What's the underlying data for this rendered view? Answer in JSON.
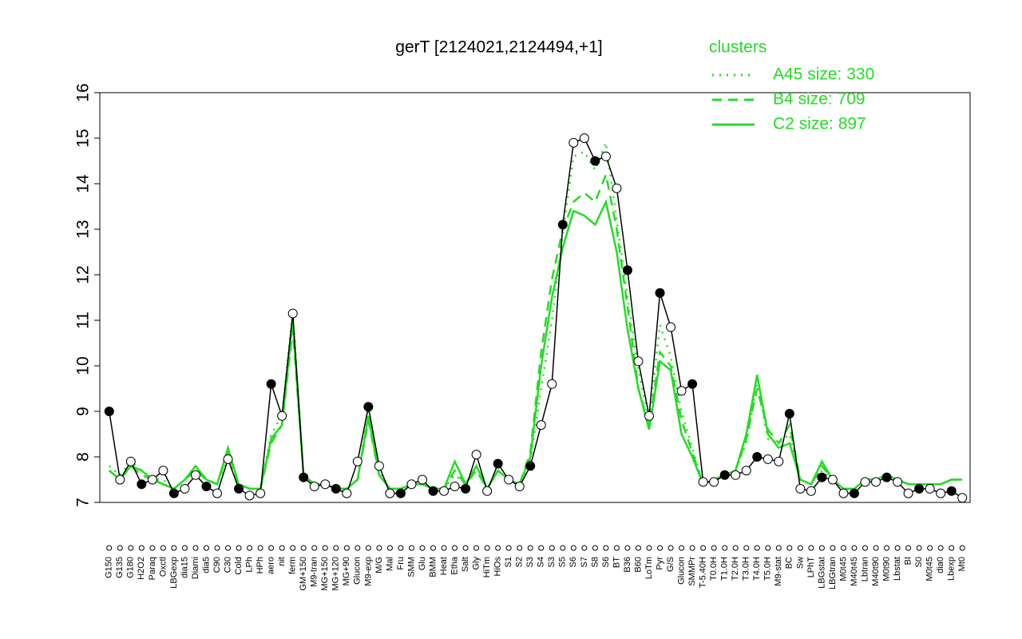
{
  "chart_data": {
    "type": "line",
    "title": "gerT [2124021,2124494,+1]",
    "legend_title": "clusters",
    "legend_position": "top-right",
    "categories": [
      "G150",
      "G135",
      "G180",
      "H2O2",
      "Paraq",
      "Oxctl",
      "LBGexp",
      "dia15",
      "Diami",
      "dia5",
      "C90",
      "C30",
      "Cold",
      "LPh",
      "HPh",
      "aero",
      "nit",
      "ferm",
      "GM+150",
      "M9-tran",
      "MG+150",
      "MG+120",
      "MG+90",
      "Glucon",
      "M9-exp",
      "M/G",
      "Mal",
      "Fru",
      "SMM",
      "Glu",
      "BMM",
      "Heat",
      "Etha",
      "Salt",
      "Gly",
      "HiTm",
      "HiOs",
      "S1",
      "S2",
      "S3",
      "S4",
      "S3",
      "S5",
      "S6",
      "S7",
      "S8",
      "S6",
      "BT",
      "B36",
      "B60",
      "LoTm",
      "Pyr",
      "G/S",
      "Glucon",
      "SMMPr",
      "T-5.40H",
      "T0.0H",
      "T1.0H",
      "T2.0H",
      "T3.0H",
      "T4.0H",
      "T5.0H",
      "M9-stat",
      "BC",
      "Sw",
      "LPhT",
      "LBGstat",
      "LBGtran",
      "M0t45",
      "M40t45",
      "Lbtran",
      "M40t90",
      "M0t90",
      "Lbstat",
      "BI",
      "S0",
      "M0t45",
      "dia0",
      "Lbexp",
      "Mt0"
    ],
    "values": [
      9.0,
      7.5,
      7.9,
      7.4,
      7.5,
      7.7,
      7.2,
      7.3,
      7.6,
      7.35,
      7.2,
      7.95,
      7.3,
      7.15,
      7.2,
      9.6,
      8.9,
      11.15,
      7.55,
      7.35,
      7.4,
      7.3,
      7.2,
      7.9,
      9.1,
      7.8,
      7.2,
      7.2,
      7.4,
      7.5,
      7.25,
      7.25,
      7.35,
      7.3,
      8.05,
      7.25,
      7.85,
      7.5,
      7.35,
      7.8,
      8.7,
      9.6,
      13.1,
      14.9,
      15.0,
      14.5,
      14.6,
      13.9,
      12.1,
      10.1,
      8.9,
      11.6,
      10.85,
      9.45,
      9.6,
      7.45,
      7.45,
      7.6,
      7.6,
      7.7,
      8.0,
      7.95,
      7.9,
      8.95,
      7.3,
      7.25,
      7.55,
      7.5,
      7.2,
      7.2,
      7.45,
      7.45,
      7.55,
      7.45,
      7.2,
      7.3,
      7.3,
      7.2,
      7.25,
      7.1
    ],
    "point_color": "#000000",
    "series": [
      {
        "name": "A45 size: 330",
        "color": "#22dd22",
        "dash": "dotted",
        "values": [
          7.8,
          7.6,
          7.9,
          7.7,
          7.5,
          7.5,
          7.3,
          7.5,
          7.7,
          7.5,
          7.4,
          8.0,
          7.4,
          7.3,
          7.3,
          8.5,
          8.9,
          11.2,
          7.6,
          7.4,
          7.4,
          7.3,
          7.3,
          7.5,
          9.0,
          7.7,
          7.3,
          7.3,
          7.4,
          7.4,
          7.3,
          7.3,
          7.6,
          7.4,
          7.8,
          7.3,
          7.7,
          7.5,
          7.4,
          7.9,
          9.5,
          11.0,
          12.9,
          14.6,
          14.7,
          14.3,
          14.9,
          13.2,
          11.5,
          9.9,
          8.8,
          10.9,
          10.2,
          9.0,
          8.2,
          7.4,
          7.5,
          7.6,
          7.7,
          8.3,
          9.6,
          8.4,
          8.3,
          8.5,
          7.5,
          7.4,
          7.7,
          7.5,
          7.3,
          7.3,
          7.5,
          7.5,
          7.6,
          7.5,
          7.4,
          7.4,
          7.4,
          7.4,
          7.5,
          7.5
        ]
      },
      {
        "name": "B4 size: 709",
        "color": "#22dd22",
        "dash": "dashed",
        "values": [
          7.7,
          7.5,
          7.8,
          7.6,
          7.5,
          7.4,
          7.3,
          7.5,
          7.7,
          7.5,
          7.4,
          8.1,
          7.4,
          7.3,
          7.3,
          8.3,
          8.7,
          10.8,
          7.6,
          7.4,
          7.4,
          7.3,
          7.3,
          7.5,
          8.8,
          7.6,
          7.3,
          7.3,
          7.4,
          7.4,
          7.3,
          7.3,
          7.7,
          7.4,
          7.7,
          7.3,
          7.7,
          7.5,
          7.4,
          8.1,
          10.3,
          11.9,
          13.0,
          13.6,
          13.8,
          13.6,
          14.2,
          13.0,
          11.3,
          9.5,
          8.7,
          10.3,
          10.0,
          8.8,
          8.1,
          7.4,
          7.5,
          7.6,
          7.7,
          8.4,
          9.5,
          8.6,
          8.3,
          8.7,
          7.5,
          7.4,
          7.8,
          7.5,
          7.3,
          7.3,
          7.5,
          7.5,
          7.6,
          7.5,
          7.4,
          7.4,
          7.4,
          7.4,
          7.5,
          7.5
        ]
      },
      {
        "name": "C2 size: 897",
        "color": "#22dd22",
        "dash": "solid",
        "values": [
          7.7,
          7.5,
          7.8,
          7.7,
          7.5,
          7.4,
          7.3,
          7.5,
          7.8,
          7.5,
          7.4,
          8.2,
          7.4,
          7.3,
          7.3,
          8.4,
          8.7,
          11.0,
          7.6,
          7.4,
          7.4,
          7.3,
          7.3,
          7.5,
          8.9,
          7.6,
          7.3,
          7.3,
          7.4,
          7.4,
          7.3,
          7.3,
          7.9,
          7.4,
          7.8,
          7.3,
          7.7,
          7.5,
          7.4,
          8.0,
          10.0,
          11.5,
          12.6,
          13.4,
          13.3,
          13.1,
          13.6,
          12.5,
          10.8,
          9.5,
          8.6,
          10.1,
          9.9,
          8.5,
          8.0,
          7.4,
          7.5,
          7.6,
          7.7,
          8.5,
          9.8,
          8.5,
          8.2,
          8.3,
          7.5,
          7.4,
          7.9,
          7.5,
          7.3,
          7.3,
          7.5,
          7.5,
          7.6,
          7.5,
          7.4,
          7.4,
          7.4,
          7.4,
          7.5,
          7.5
        ]
      }
    ],
    "ylim": [
      7,
      16
    ],
    "yticks": [
      7,
      8,
      9,
      10,
      11,
      12,
      13,
      14,
      15,
      16
    ],
    "grid": false
  }
}
